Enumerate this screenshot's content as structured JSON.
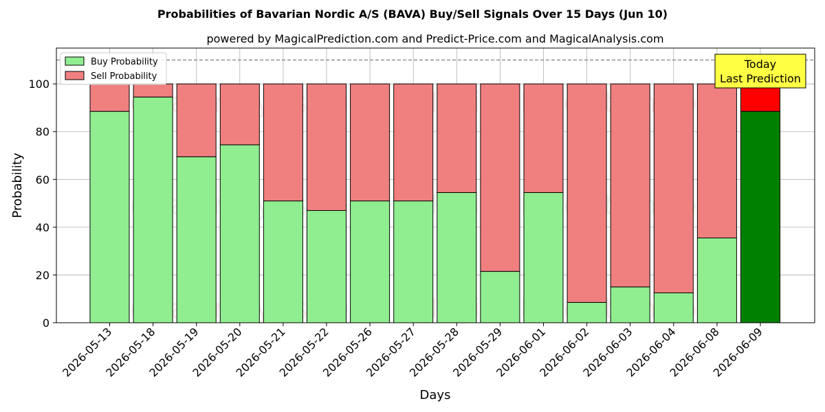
{
  "chart_data": {
    "type": "bar",
    "stacked": true,
    "title": "Probabilities of Bavarian Nordic A/S (BAVA) Buy/Sell Signals Over 15 Days (Jun 10)",
    "subtitle": "powered by MagicalPrediction.com and Predict-Price.com and MagicalAnalysis.com",
    "xlabel": "Days",
    "ylabel": "Probability",
    "ylim": [
      0,
      115
    ],
    "yticks": [
      0,
      20,
      40,
      60,
      80,
      100
    ],
    "grid": true,
    "legend_position": "top-left",
    "reference_line": 110,
    "categories": [
      "2026-05-13",
      "2026-05-18",
      "2026-05-19",
      "2026-05-20",
      "2026-05-21",
      "2026-05-22",
      "2026-05-26",
      "2026-05-27",
      "2026-05-28",
      "2026-05-29",
      "2026-06-01",
      "2026-06-02",
      "2026-06-03",
      "2026-06-04",
      "2026-06-08",
      "2026-06-09"
    ],
    "series": [
      {
        "name": "Buy Probability",
        "color": "#90ee90",
        "highlight_color": "#008000",
        "values": [
          88.5,
          94.5,
          69.5,
          74.5,
          51,
          47,
          51,
          51,
          54.5,
          21.5,
          54.5,
          8.5,
          15,
          12.5,
          35.5,
          88.5
        ]
      },
      {
        "name": "Sell Probability",
        "color": "#f08080",
        "highlight_color": "#ff0000",
        "values": [
          11.5,
          5.5,
          30.5,
          25.5,
          49,
          53,
          49,
          49,
          45.5,
          78.5,
          45.5,
          91.5,
          85,
          87.5,
          64.5,
          11.5
        ]
      }
    ],
    "highlight_index": 15,
    "annotation": {
      "lines": [
        "Today",
        "Last Prediction"
      ],
      "background": "#ffff44"
    },
    "watermarks": [
      "MagicalAnalysis.com",
      "MagicalPrediction.com"
    ]
  }
}
